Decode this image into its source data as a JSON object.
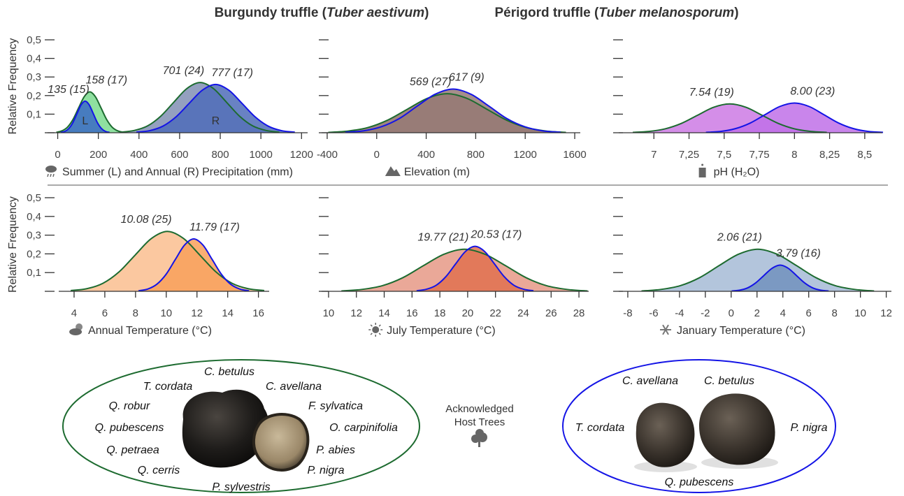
{
  "titles": [
    {
      "parts": [
        "Burgundy truffle (",
        "Tuber aestivum",
        ")"
      ],
      "color": "#1d6b30"
    },
    {
      "parts": [
        "Périgord truffle (",
        "Tuber melanosporum",
        ")"
      ],
      "color": "#1414e6"
    }
  ],
  "chart_data": [
    {
      "type": "area",
      "ylabel": "Relative Frequency",
      "xlabel": "Summer (L) and Annual (R) Precipitation (mm)",
      "xlim": [
        -50,
        1230
      ],
      "xticks": [
        0,
        200,
        400,
        600,
        800,
        1000,
        1200
      ],
      "ylim": [
        0,
        0.5
      ],
      "yticks": [
        0,
        {
          "value": 0.1,
          "label": "0,1"
        },
        {
          "value": 0.2,
          "label": "0,2"
        },
        {
          "value": 0.3,
          "label": "0,3"
        },
        {
          "value": 0.4,
          "label": "0,4"
        },
        {
          "value": 0.5,
          "label": "0,5"
        }
      ],
      "series": [
        {
          "label": "158 (17)",
          "color": "#1d6b30",
          "fill": "#8fe0a0",
          "x": [
            -7,
            20.5,
            48,
            75.5,
            103,
            130.5,
            158,
            185.5,
            213,
            240.5,
            268,
            295.5,
            323
          ],
          "values": [
            0.002,
            0.01,
            0.03,
            0.072,
            0.134,
            0.194,
            0.22,
            0.194,
            0.134,
            0.072,
            0.03,
            0.01,
            0.002
          ]
        },
        {
          "label": "135 (15)",
          "area_label": "L",
          "color": "#1414e6",
          "fill": "#3b6ac4",
          "x": [
            15,
            35,
            55,
            75,
            95,
            115,
            135,
            155,
            175,
            195,
            215,
            235,
            255
          ],
          "values": [
            0.002,
            0.007,
            0.023,
            0.055,
            0.103,
            0.15,
            0.17,
            0.15,
            0.103,
            0.055,
            0.023,
            0.007,
            0.002
          ]
        },
        {
          "label": "701 (24)",
          "color": "#1d6b30",
          "fill": "#94a0bf",
          "x": [
            311,
            376,
            441,
            506,
            571,
            636,
            701,
            766,
            831,
            896,
            961,
            1026,
            1091
          ],
          "values": [
            0.003,
            0.012,
            0.036,
            0.088,
            0.164,
            0.238,
            0.27,
            0.238,
            0.164,
            0.088,
            0.036,
            0.012,
            0.003
          ]
        },
        {
          "label": "777 (17)",
          "area_label": "R",
          "color": "#1414e6",
          "fill": "#4f6cb8",
          "x": [
            387,
            452,
            517,
            582,
            647,
            712,
            777,
            842,
            907,
            972,
            1037,
            1102,
            1167
          ],
          "values": [
            0.003,
            0.011,
            0.035,
            0.085,
            0.158,
            0.229,
            0.26,
            0.229,
            0.158,
            0.085,
            0.035,
            0.011,
            0.003
          ]
        }
      ]
    },
    {
      "type": "area",
      "xlabel": "Elevation (m)",
      "xlim": [
        -445,
        1645
      ],
      "xticks": [
        -400,
        0,
        400,
        800,
        1200,
        1600
      ],
      "ylim": [
        0,
        0.5
      ],
      "yticks": [
        0,
        0.1,
        0.2,
        0.3,
        0.4,
        0.5
      ],
      "series": [
        {
          "label": "569 (27)",
          "color": "#1d6b30",
          "fill": "#a08580",
          "x": [
            -391,
            -231,
            -71,
            89,
            249,
            409,
            569,
            729,
            889,
            1049,
            1209,
            1369,
            1529
          ],
          "values": [
            0.002,
            0.009,
            0.028,
            0.068,
            0.127,
            0.185,
            0.21,
            0.185,
            0.127,
            0.068,
            0.028,
            0.009,
            0.002
          ]
        },
        {
          "label": "617 (9)",
          "color": "#1414e6",
          "fill": "#977a75",
          "x": [
            -253,
            -108,
            37,
            182,
            327,
            472,
            617,
            762,
            907,
            1052,
            1197,
            1342,
            1487
          ],
          "values": [
            0.003,
            0.01,
            0.032,
            0.076,
            0.143,
            0.207,
            0.235,
            0.207,
            0.143,
            0.076,
            0.032,
            0.01,
            0.003
          ]
        }
      ]
    },
    {
      "type": "area",
      "xlabel": "pH (H₂O)",
      "xlim": [
        6.75,
        8.625
      ],
      "xticks": [
        7,
        {
          "value": 7.25,
          "label": "7,25"
        },
        {
          "value": 7.5,
          "label": "7,5"
        },
        {
          "value": 7.75,
          "label": "7,75"
        },
        8,
        {
          "value": 8.25,
          "label": "8,25"
        },
        {
          "value": 8.5,
          "label": "8,5"
        }
      ],
      "ylim": [
        0,
        0.5
      ],
      "yticks": [
        0,
        0.1,
        0.2,
        0.3,
        0.4,
        0.5
      ],
      "series": [
        {
          "label": "7.54 (19)",
          "color": "#1d6b30",
          "fill": "#d48ee8",
          "x": [
            6.85,
            6.965,
            7.08,
            7.195,
            7.31,
            7.425,
            7.54,
            7.655,
            7.77,
            7.885,
            8.0,
            8.115,
            8.23
          ],
          "values": [
            0.002,
            0.007,
            0.021,
            0.05,
            0.094,
            0.137,
            0.155,
            0.137,
            0.094,
            0.05,
            0.021,
            0.007,
            0.002
          ]
        },
        {
          "label": "8.00 (23)",
          "color": "#1414e6",
          "fill": "#c070e8",
          "x": [
            7.37,
            7.475,
            7.58,
            7.685,
            7.79,
            7.895,
            8.0,
            8.105,
            8.21,
            8.315,
            8.42,
            8.525,
            8.63
          ],
          "values": [
            0.002,
            0.007,
            0.022,
            0.052,
            0.097,
            0.141,
            0.16,
            0.141,
            0.097,
            0.052,
            0.022,
            0.007,
            0.002
          ]
        }
      ]
    },
    {
      "type": "area",
      "ylabel": "Relative Frequency",
      "xlabel": "Annual Temperature (°C)",
      "xlim": [
        3,
        16.7
      ],
      "xticks": [
        4,
        6,
        8,
        10,
        12,
        14,
        16
      ],
      "ylim": [
        0,
        0.5
      ],
      "yticks": [
        0,
        {
          "value": 0.1,
          "label": "0,1"
        },
        {
          "value": 0.2,
          "label": "0,2"
        },
        {
          "value": 0.3,
          "label": "0,3"
        },
        {
          "value": 0.4,
          "label": "0,4"
        },
        {
          "value": 0.5,
          "label": "0,5"
        }
      ],
      "series": [
        {
          "label": "10.08 (25)",
          "color": "#1d6b30",
          "fill": "#fbc8a0",
          "x": [
            3.78,
            4.83,
            5.88,
            6.93,
            7.98,
            9.03,
            10.08,
            11.13,
            12.18,
            13.23,
            14.28,
            15.33,
            16.38
          ],
          "values": [
            0.004,
            0.014,
            0.043,
            0.104,
            0.194,
            0.282,
            0.32,
            0.282,
            0.194,
            0.104,
            0.043,
            0.014,
            0.004
          ]
        },
        {
          "label": "11.79 (17)",
          "color": "#1414e6",
          "fill": "#f8a05a",
          "x": [
            8.19,
            8.79,
            9.39,
            9.99,
            10.59,
            11.19,
            11.79,
            12.39,
            12.99,
            13.59,
            14.19,
            14.79,
            15.39
          ],
          "values": [
            0.003,
            0.012,
            0.038,
            0.091,
            0.17,
            0.247,
            0.28,
            0.247,
            0.17,
            0.091,
            0.038,
            0.012,
            0.003
          ]
        }
      ]
    },
    {
      "type": "area",
      "xlabel": "July Temperature (°C)",
      "xlim": [
        9.5,
        28.7
      ],
      "xticks": [
        10,
        12,
        14,
        16,
        18,
        20,
        22,
        24,
        26,
        28
      ],
      "ylim": [
        0,
        0.5
      ],
      "yticks": [
        0,
        0.1,
        0.2,
        0.3,
        0.4,
        0.5
      ],
      "series": [
        {
          "label": "19.77 (21)",
          "color": "#1d6b30",
          "fill": "#eaa898",
          "x": [
            10.92,
            12.395,
            13.87,
            15.345,
            16.82,
            18.295,
            19.77,
            21.245,
            22.72,
            24.195,
            25.67,
            27.145,
            28.62
          ],
          "values": [
            0.002,
            0.01,
            0.03,
            0.073,
            0.137,
            0.198,
            0.225,
            0.198,
            0.137,
            0.073,
            0.03,
            0.01,
            0.002
          ]
        },
        {
          "label": "20.53 (17)",
          "color": "#1414e6",
          "fill": "#e0714f",
          "x": [
            16.33,
            17.03,
            17.73,
            18.43,
            19.13,
            19.83,
            20.53,
            21.23,
            21.93,
            22.63,
            23.33,
            24.03,
            24.73
          ],
          "values": [
            0.003,
            0.011,
            0.032,
            0.078,
            0.146,
            0.212,
            0.24,
            0.212,
            0.146,
            0.078,
            0.032,
            0.011,
            0.003
          ]
        }
      ]
    },
    {
      "type": "area",
      "xlabel": "January Temperature (°C)",
      "xlim": [
        -8.7,
        12.4
      ],
      "xticks": [
        -8,
        -6,
        -4,
        -2,
        0,
        2,
        4,
        6,
        8,
        10,
        12
      ],
      "ylim": [
        0,
        0.5
      ],
      "yticks": [
        0,
        0.1,
        0.2,
        0.3,
        0.4,
        0.5
      ],
      "series": [
        {
          "label": "2.06 (21)",
          "color": "#1d6b30",
          "fill": "#b3c5dc",
          "x": [
            -6.94,
            -5.44,
            -3.94,
            -2.44,
            -0.94,
            0.56,
            2.06,
            3.56,
            5.06,
            6.56,
            8.06,
            9.56,
            11.06
          ],
          "values": [
            0.002,
            0.01,
            0.03,
            0.073,
            0.137,
            0.198,
            0.225,
            0.198,
            0.137,
            0.073,
            0.03,
            0.01,
            0.002
          ]
        },
        {
          "label": "3.79 (16)",
          "color": "#1414e6",
          "fill": "#7191bd",
          "x": [
            0.04,
            0.665,
            1.29,
            1.915,
            2.54,
            3.165,
            3.79,
            4.415,
            5.04,
            5.665,
            6.29,
            6.915,
            7.54
          ],
          "values": [
            0.002,
            0.006,
            0.019,
            0.046,
            0.085,
            0.123,
            0.14,
            0.123,
            0.085,
            0.046,
            0.019,
            0.006,
            0.002
          ]
        }
      ]
    }
  ],
  "host_trees": {
    "label": [
      "Acknowledged",
      "Host Trees"
    ],
    "burgundy": [
      "C. betulus",
      "T. cordata",
      "C. avellana",
      "Q. robur",
      "F. sylvatica",
      "Q. pubescens",
      "O. carpinifolia",
      "Q. petraea",
      "P. abies",
      "Q. cerris",
      "P. nigra",
      "P. sylvestris"
    ],
    "perigord": [
      "C. avellana",
      "C. betulus",
      "T. cordata",
      "P. nigra",
      "Q. pubescens"
    ]
  }
}
